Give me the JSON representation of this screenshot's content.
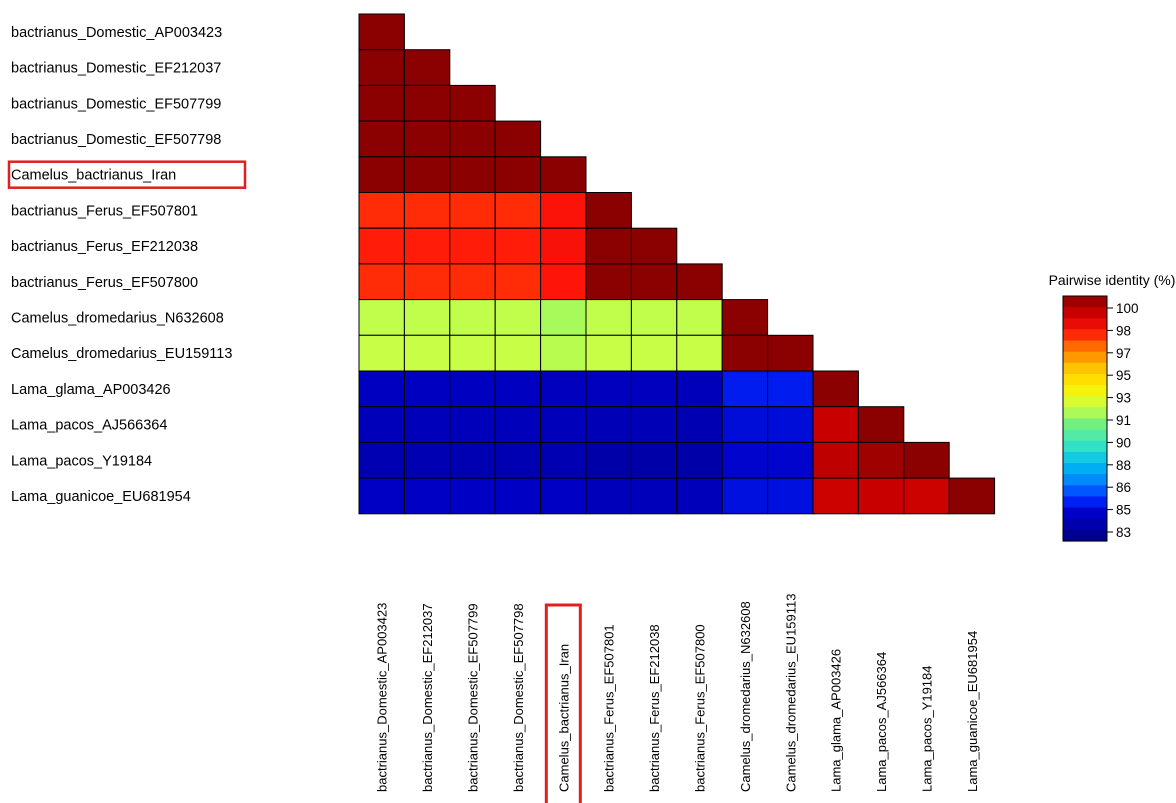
{
  "chart_data": {
    "type": "heatmap",
    "title": "",
    "legend_title": "Pairwise identity (%)",
    "legend_ticks": [
      100,
      98,
      97,
      95,
      93,
      91,
      90,
      88,
      86,
      85,
      83
    ],
    "highlighted_label": "Camelus_bactrianus_Iran",
    "row_labels": [
      "bactrianus_Domestic_AP003423",
      "bactrianus_Domestic_EF212037",
      "bactrianus_Domestic_EF507799",
      "bactrianus_Domestic_EF507798",
      "Camelus_bactrianus_Iran",
      "bactrianus_Ferus_EF507801",
      "bactrianus_Ferus_EF212038",
      "bactrianus_Ferus_EF507800",
      "Camelus_dromedarius_N632608",
      "Camelus_dromedarius_EU159113",
      "Lama_glama_AP003426",
      "Lama_pacos_AJ566364",
      "Lama_pacos_Y19184",
      "Lama_guanicoe_EU681954"
    ],
    "col_labels": [
      "bactrianus_Domestic_AP003423",
      "bactrianus_Domestic_EF212037",
      "bactrianus_Domestic_EF507799",
      "bactrianus_Domestic_EF507798",
      "Camelus_bactrianus_Iran",
      "bactrianus_Ferus_EF507801",
      "bactrianus_Ferus_EF212038",
      "bactrianus_Ferus_EF507800",
      "Camelus_dromedarius_N632608",
      "Camelus_dromedarius_EU159113",
      "Lama_glama_AP003426",
      "Lama_pacos_AJ566364",
      "Lama_pacos_Y19184",
      "Lama_guanicoe_EU681954"
    ],
    "values": [
      [
        100
      ],
      [
        100,
        100
      ],
      [
        100,
        100,
        100
      ],
      [
        100,
        100,
        100,
        100
      ],
      [
        100,
        100,
        100,
        100,
        100
      ],
      [
        97.2,
        97.2,
        97.2,
        97.2,
        97.6,
        100
      ],
      [
        97.4,
        97.4,
        97.4,
        97.4,
        97.7,
        100,
        100
      ],
      [
        97.2,
        97.2,
        97.2,
        97.2,
        97.5,
        100,
        100,
        100
      ],
      [
        91.9,
        91.9,
        91.9,
        91.9,
        91.6,
        91.9,
        91.9,
        91.9,
        100
      ],
      [
        92.0,
        92.0,
        92.0,
        92.0,
        91.8,
        92.0,
        92.0,
        92.0,
        100,
        100
      ],
      [
        84.3,
        84.3,
        84.3,
        84.3,
        84.2,
        84.2,
        84.2,
        84.1,
        85.2,
        85.2,
        100
      ],
      [
        84.1,
        84.1,
        84.1,
        84.1,
        84.1,
        84.0,
        84.0,
        83.9,
        84.8,
        84.8,
        98.8,
        100
      ],
      [
        83.9,
        83.9,
        83.9,
        83.9,
        83.9,
        83.6,
        83.6,
        83.6,
        84.6,
        84.6,
        99.0,
        99.6,
        100
      ],
      [
        84.4,
        84.4,
        84.4,
        84.4,
        84.4,
        84.1,
        84.1,
        84.1,
        84.9,
        84.9,
        98.7,
        98.8,
        98.7,
        100
      ]
    ],
    "colors": {
      "low": "#00008b",
      "high": "#8b0000",
      "highlight_box": "#e02020",
      "cell_border": "#000000"
    }
  }
}
